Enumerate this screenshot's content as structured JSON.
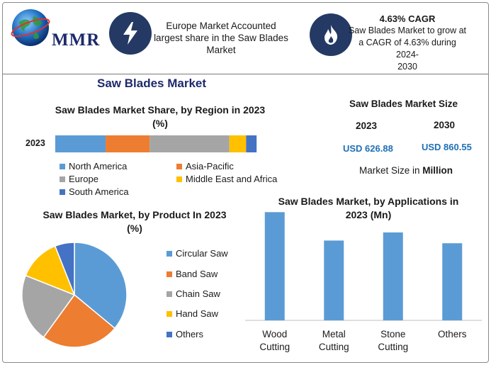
{
  "header": {
    "logo_text": "MMR",
    "box1_text": [
      "Europe Market Accounted",
      "largest share in the Saw Blades",
      "Market"
    ],
    "box2_title": "4.63% CAGR",
    "box2_text": [
      "Saw Blades Market to grow at",
      "a CAGR of 4.63% during 2024-",
      "2030"
    ],
    "icon1": "lightning-icon",
    "icon2": "flame-icon",
    "colors": {
      "icon_bg": "#243a64",
      "title_blue": "#1d2a6b",
      "value_blue": "#1f6fb5"
    }
  },
  "main_title": "Saw Blades Market",
  "market_size": {
    "title": "Saw Blades Market Size",
    "year1": "2023",
    "year2": "2030",
    "value1": "USD 626.88",
    "value2": "USD 860.55",
    "unit_prefix": "Market Size in",
    "unit": "Million"
  },
  "chart_data": [
    {
      "type": "bar",
      "orientation": "horizontal-stacked",
      "title": "Saw Blades Market Share, by Region in 2023",
      "subtitle": "(%)",
      "categories": [
        "2023"
      ],
      "series": [
        {
          "name": "North America",
          "values": [
            24
          ],
          "color": "#5b9bd5"
        },
        {
          "name": "Asia-Pacific",
          "values": [
            21
          ],
          "color": "#ed7d31"
        },
        {
          "name": "Europe",
          "values": [
            38
          ],
          "color": "#a5a5a5"
        },
        {
          "name": "Middle East and Africa",
          "values": [
            8
          ],
          "color": "#ffc000"
        },
        {
          "name": "South America",
          "values": [
            5
          ],
          "color": "#4472c4"
        }
      ],
      "xlim": [
        0,
        100
      ],
      "legend": "bottom"
    },
    {
      "type": "pie",
      "title": "Saw Blades Market, by Product In 2023",
      "subtitle": "(%)",
      "categories": [
        "Circular Saw",
        "Band Saw",
        "Chain Saw",
        "Hand Saw",
        "Others"
      ],
      "values": [
        36,
        24,
        21,
        13,
        6
      ],
      "colors": [
        "#5b9bd5",
        "#ed7d31",
        "#a5a5a5",
        "#ffc000",
        "#4472c4"
      ],
      "legend": "right"
    },
    {
      "type": "bar",
      "title": "Saw Blades Market, by Applications in",
      "subtitle": "2023 (Mn)",
      "categories": [
        "Wood Cutting",
        "Metal Cutting",
        "Stone Cutting",
        "Others"
      ],
      "values": [
        160,
        118,
        130,
        114
      ],
      "color": "#5b9bd5",
      "ylim": [
        0,
        175
      ],
      "grid": false
    }
  ]
}
